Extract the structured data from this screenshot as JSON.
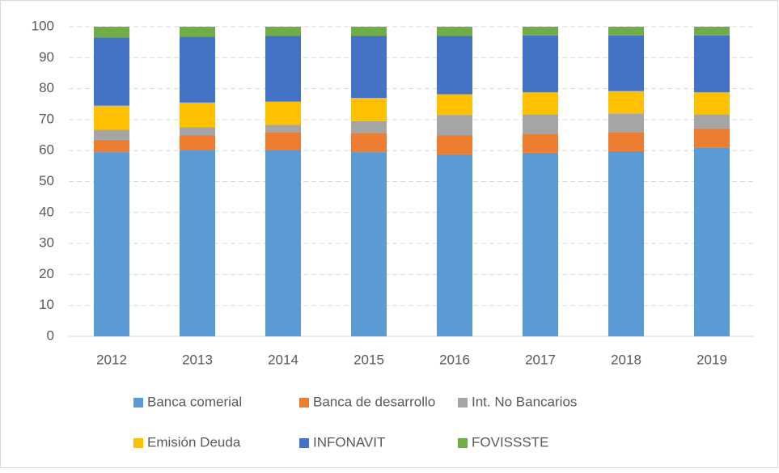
{
  "chart_data": {
    "type": "stacked_bar",
    "categories": [
      "2012",
      "2013",
      "2014",
      "2015",
      "2016",
      "2017",
      "2018",
      "2019"
    ],
    "series": [
      {
        "name": "Banca comerial",
        "color": "#5b9bd5",
        "values": [
          59.5,
          60.2,
          60.3,
          59.5,
          58.8,
          59.3,
          59.8,
          61.0
        ]
      },
      {
        "name": "Banca de desarrollo",
        "color": "#ed7d31",
        "values": [
          4.0,
          4.8,
          5.7,
          6.2,
          6.2,
          6.2,
          6.2,
          6.2
        ]
      },
      {
        "name": "Int. No Bancarios",
        "color": "#a5a5a5",
        "values": [
          3.2,
          2.5,
          2.3,
          3.8,
          6.5,
          6.2,
          6.0,
          4.5
        ]
      },
      {
        "name": "Emisión Deuda",
        "color": "#ffc000",
        "values": [
          7.8,
          8.0,
          7.5,
          7.5,
          6.7,
          7.1,
          7.2,
          7.1
        ]
      },
      {
        "name": "INFONAVIT",
        "color": "#4472c4",
        "values": [
          22.0,
          21.3,
          21.2,
          20.0,
          18.8,
          18.4,
          18.0,
          18.4
        ]
      },
      {
        "name": "FOVISSSTE",
        "color": "#70ad47",
        "values": [
          3.5,
          3.2,
          3.0,
          3.0,
          3.0,
          2.8,
          2.8,
          2.8
        ]
      }
    ],
    "ylim": [
      0,
      100
    ],
    "yticks": [
      0,
      10,
      20,
      30,
      40,
      50,
      60,
      70,
      80,
      90,
      100
    ],
    "grid": true,
    "legend": "bottom"
  }
}
